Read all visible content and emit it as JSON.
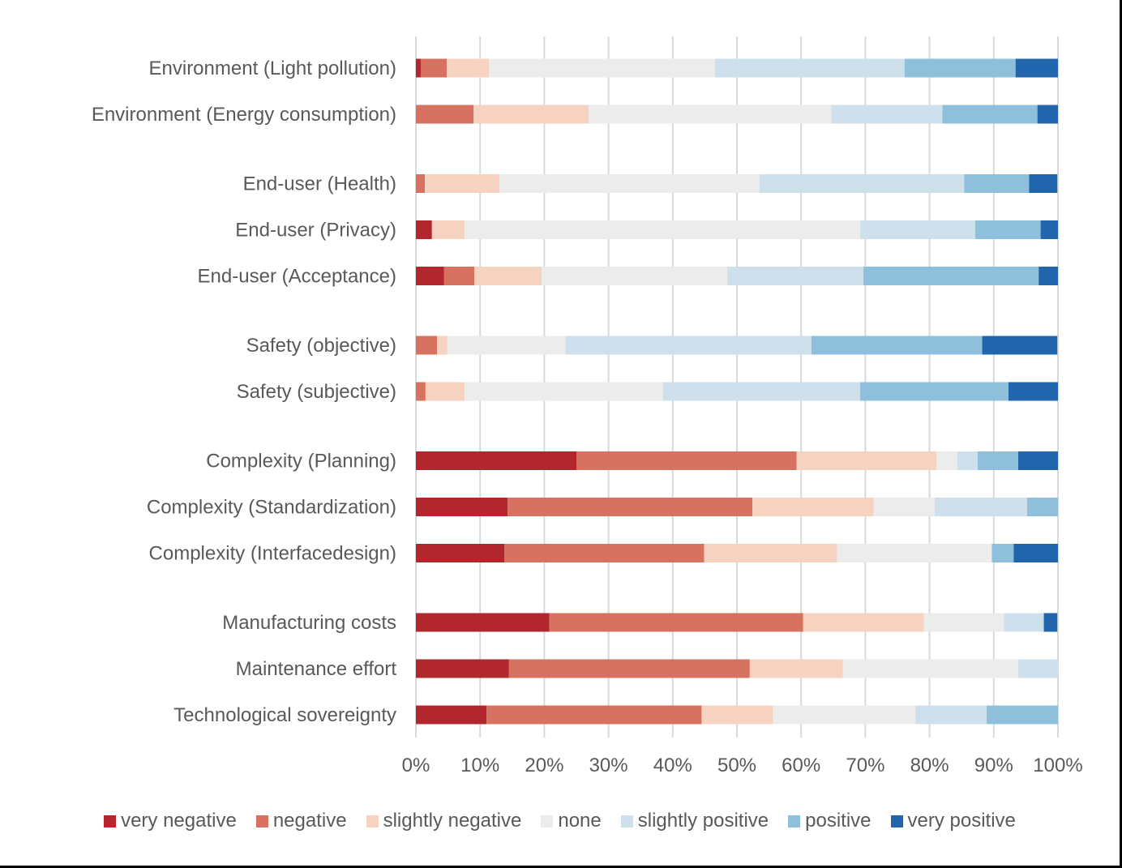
{
  "chart_data": {
    "type": "bar",
    "orientation": "horizontal",
    "stacked": "100%",
    "title": "",
    "xlabel": "",
    "ylabel": "",
    "xlim": [
      0,
      100
    ],
    "x_ticks": [
      "0%",
      "10%",
      "20%",
      "30%",
      "40%",
      "50%",
      "60%",
      "70%",
      "80%",
      "90%",
      "100%"
    ],
    "grid": "vertical",
    "legend_position": "bottom",
    "categories": [
      "Environment (Light pollution)",
      "Environment (Energy consumption)",
      "End-user (Health)",
      "End-user (Privacy)",
      "End-user (Acceptance)",
      "Safety (objective)",
      "Safety (subjective)",
      "Complexity (Planning)",
      "Complexity (Standardization)",
      "Complexity (Interfacedesign)",
      "Manufacturing costs",
      "Maintenance effort",
      "Technological sovereignty"
    ],
    "group_breaks_after": [
      1,
      4,
      6,
      9
    ],
    "series": [
      {
        "name": "very negative",
        "color": "#b2272d",
        "values": [
          0.8,
          0,
          0,
          2.5,
          4.4,
          0,
          0,
          25.0,
          14.3,
          13.8,
          20.8,
          14.5,
          11.0
        ]
      },
      {
        "name": "negative",
        "color": "#d6725f",
        "values": [
          4.0,
          9.0,
          1.4,
          0,
          4.7,
          3.3,
          1.5,
          34.3,
          38.1,
          31.1,
          39.5,
          37.5,
          33.5
        ]
      },
      {
        "name": "slightly negative",
        "color": "#f6d3c1",
        "values": [
          6.6,
          17.9,
          11.6,
          5.1,
          10.5,
          1.6,
          6.1,
          21.8,
          18.9,
          20.7,
          18.8,
          14.5,
          11.1
        ]
      },
      {
        "name": "none",
        "color": "#ececec",
        "values": [
          35.2,
          37.8,
          40.5,
          61.6,
          28.9,
          18.4,
          30.9,
          3.2,
          9.5,
          24.1,
          12.5,
          27.3,
          22.2
        ]
      },
      {
        "name": "slightly positive",
        "color": "#cde0ec",
        "values": [
          29.5,
          17.3,
          31.9,
          17.9,
          21.2,
          38.3,
          30.7,
          3.2,
          14.4,
          0,
          6.2,
          6.2,
          11.1
        ]
      },
      {
        "name": "positive",
        "color": "#8fc0db",
        "values": [
          17.3,
          14.8,
          10.1,
          10.2,
          27.3,
          26.6,
          23.1,
          6.3,
          4.8,
          3.4,
          0,
          0,
          11.1
        ]
      },
      {
        "name": "very positive",
        "color": "#2166ac",
        "values": [
          6.6,
          3.2,
          4.4,
          2.7,
          3.0,
          11.7,
          7.7,
          6.2,
          0,
          6.9,
          2.1,
          0,
          0
        ]
      }
    ]
  },
  "colors": {
    "gridline": "#d9d9d9",
    "text": "#595959",
    "frame": "#000000"
  }
}
